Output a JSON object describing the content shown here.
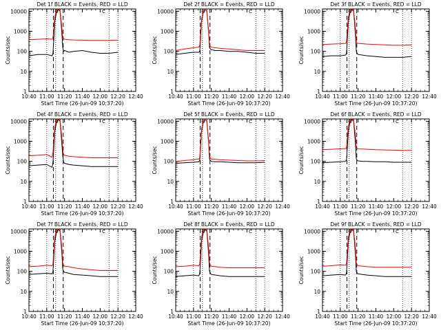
{
  "layout": {
    "rows": 3,
    "cols": 3
  },
  "common": {
    "xlabel": "Start Time (26-Jun-09 10:37:20)",
    "ylabel": "Counts/sec",
    "xticks": [
      "10:40",
      "11:00",
      "11:20",
      "11:40",
      "12:00",
      "12:20",
      "12:40"
    ],
    "yticks": [
      "1",
      "10",
      "100",
      "1000",
      "10000"
    ],
    "xrange_min": [
      0,
      120
    ],
    "ylim": [
      1,
      13000
    ],
    "yscale": "log",
    "dotted_lines_min": [
      20,
      30,
      90,
      100
    ],
    "dashed_lines_min": [
      27.5,
      38.5
    ],
    "colors": {
      "events": "#000000",
      "lld": "#ff0000",
      "axis": "#000000"
    },
    "markers": [
      "O",
      "C"
    ]
  },
  "chart_data": [
    {
      "type": "line",
      "title": "Det 1f BLACK = Events, RED = LLD",
      "series": [
        {
          "legend": "BLACK = Events",
          "color": "#000000",
          "x": [
            0,
            10,
            20,
            26,
            27,
            29,
            31,
            33,
            35,
            37,
            38,
            39,
            40,
            45,
            50,
            60,
            70,
            80,
            90,
            100
          ],
          "y": [
            60,
            70,
            70,
            60,
            80,
            3000,
            9000,
            12000,
            10000,
            800,
            150,
            100,
            110,
            90,
            100,
            110,
            90,
            80,
            80,
            90
          ]
        },
        {
          "legend": "RED = LLD",
          "color": "#ff0000",
          "x": [
            0,
            10,
            20,
            26,
            27,
            29,
            31,
            33,
            35,
            37,
            38,
            39,
            40,
            45,
            50,
            60,
            70,
            80,
            90,
            100
          ],
          "y": [
            380,
            400,
            420,
            400,
            500,
            5000,
            11000,
            13000,
            11000,
            1500,
            500,
            420,
            400,
            380,
            370,
            360,
            350,
            350,
            350,
            360
          ]
        }
      ]
    },
    {
      "type": "line",
      "title": "Det 2f BLACK = Events, RED = LLD",
      "series": [
        {
          "legend": "BLACK = Events",
          "color": "#000000",
          "x": [
            0,
            10,
            20,
            26,
            27,
            29,
            31,
            33,
            35,
            37,
            38,
            39,
            40,
            45,
            50,
            60,
            70,
            80,
            90,
            100
          ],
          "y": [
            70,
            80,
            90,
            90,
            100,
            3000,
            9000,
            12000,
            10000,
            800,
            150,
            130,
            120,
            110,
            110,
            100,
            100,
            90,
            80,
            80
          ]
        },
        {
          "legend": "RED = LLD",
          "color": "#ff0000",
          "x": [
            0,
            10,
            20,
            26,
            27,
            29,
            31,
            33,
            35,
            37,
            38,
            39,
            40,
            45,
            50,
            60,
            70,
            80,
            90,
            100
          ],
          "y": [
            110,
            130,
            150,
            160,
            200,
            4000,
            10000,
            12000,
            10000,
            1000,
            200,
            170,
            160,
            150,
            140,
            130,
            120,
            110,
            110,
            110
          ]
        }
      ]
    },
    {
      "type": "line",
      "title": "Det 3f BLACK = Events, RED = LLD",
      "series": [
        {
          "legend": "BLACK = Events",
          "color": "#000000",
          "x": [
            0,
            10,
            20,
            26,
            27,
            29,
            31,
            33,
            35,
            37,
            38,
            39,
            40,
            45,
            50,
            60,
            70,
            80,
            90,
            100
          ],
          "y": [
            55,
            60,
            60,
            65,
            80,
            3000,
            9000,
            12000,
            10000,
            700,
            100,
            80,
            70,
            65,
            60,
            55,
            50,
            50,
            50,
            55
          ]
        },
        {
          "legend": "RED = LLD",
          "color": "#ff0000",
          "x": [
            0,
            10,
            20,
            26,
            27,
            29,
            31,
            33,
            35,
            37,
            38,
            39,
            40,
            45,
            50,
            60,
            70,
            80,
            90,
            100
          ],
          "y": [
            220,
            230,
            240,
            250,
            300,
            5000,
            11000,
            13000,
            11000,
            1500,
            300,
            260,
            250,
            240,
            230,
            220,
            210,
            200,
            200,
            210
          ]
        }
      ]
    },
    {
      "type": "line",
      "title": "Det 4f BLACK = Events, RED = LLD",
      "series": [
        {
          "legend": "BLACK = Events",
          "color": "#000000",
          "x": [
            0,
            10,
            20,
            26,
            27,
            29,
            31,
            33,
            35,
            37,
            38,
            39,
            40,
            45,
            50,
            60,
            70,
            80,
            90,
            100
          ],
          "y": [
            60,
            65,
            70,
            50,
            90,
            3000,
            9000,
            12000,
            10000,
            700,
            180,
            90,
            80,
            70,
            65,
            60,
            55,
            55,
            55,
            55
          ]
        },
        {
          "legend": "RED = LLD",
          "color": "#ff0000",
          "x": [
            0,
            10,
            20,
            26,
            27,
            29,
            31,
            33,
            35,
            37,
            38,
            39,
            40,
            45,
            50,
            60,
            70,
            80,
            90,
            100
          ],
          "y": [
            190,
            200,
            220,
            160,
            280,
            5000,
            11000,
            13000,
            11000,
            1500,
            350,
            220,
            200,
            180,
            170,
            160,
            150,
            150,
            150,
            150
          ]
        }
      ]
    },
    {
      "type": "line",
      "title": "Det 5f BLACK = Events, RED = LLD",
      "series": [
        {
          "legend": "BLACK = Events",
          "color": "#000000",
          "x": [
            0,
            10,
            20,
            26,
            27,
            29,
            31,
            33,
            35,
            37,
            38,
            39,
            40,
            45,
            50,
            60,
            70,
            80,
            90,
            100
          ],
          "y": [
            80,
            85,
            90,
            95,
            110,
            3000,
            9000,
            12000,
            10000,
            800,
            130,
            110,
            100,
            95,
            95,
            90,
            85,
            85,
            85,
            90
          ]
        },
        {
          "legend": "RED = LLD",
          "color": "#ff0000",
          "x": [
            0,
            10,
            20,
            26,
            27,
            29,
            31,
            33,
            35,
            37,
            38,
            39,
            40,
            45,
            50,
            60,
            70,
            80,
            90,
            100
          ],
          "y": [
            100,
            110,
            120,
            130,
            150,
            4000,
            10000,
            12000,
            10000,
            1000,
            170,
            140,
            130,
            125,
            120,
            115,
            110,
            105,
            105,
            110
          ]
        }
      ]
    },
    {
      "type": "line",
      "title": "Det 6f BLACK = Events, RED = LLD",
      "series": [
        {
          "legend": "BLACK = Events",
          "color": "#000000",
          "x": [
            0,
            10,
            20,
            26,
            27,
            29,
            31,
            33,
            35,
            37,
            38,
            39,
            40,
            45,
            50,
            60,
            70,
            80,
            90,
            100
          ],
          "y": [
            85,
            90,
            95,
            100,
            120,
            3000,
            9000,
            12000,
            10000,
            800,
            130,
            110,
            105,
            100,
            100,
            95,
            95,
            90,
            90,
            90
          ]
        },
        {
          "legend": "RED = LLD",
          "color": "#ff0000",
          "x": [
            0,
            10,
            20,
            26,
            27,
            29,
            31,
            33,
            35,
            37,
            38,
            39,
            40,
            45,
            50,
            60,
            70,
            80,
            90,
            100
          ],
          "y": [
            380,
            400,
            420,
            430,
            500,
            6000,
            11000,
            13000,
            11000,
            2000,
            500,
            440,
            420,
            410,
            400,
            380,
            370,
            360,
            350,
            350
          ]
        }
      ]
    },
    {
      "type": "line",
      "title": "Det 7f BLACK = Events, RED = LLD",
      "series": [
        {
          "legend": "BLACK = Events",
          "color": "#000000",
          "x": [
            0,
            10,
            20,
            26,
            27,
            29,
            31,
            33,
            35,
            37,
            38,
            39,
            40,
            45,
            50,
            60,
            70,
            80,
            90,
            100
          ],
          "y": [
            70,
            75,
            80,
            75,
            100,
            3000,
            9000,
            12000,
            10000,
            800,
            130,
            100,
            90,
            80,
            70,
            65,
            60,
            55,
            55,
            55
          ]
        },
        {
          "legend": "RED = LLD",
          "color": "#ff0000",
          "x": [
            0,
            10,
            20,
            26,
            27,
            29,
            31,
            33,
            35,
            37,
            38,
            39,
            40,
            45,
            50,
            60,
            70,
            80,
            90,
            100
          ],
          "y": [
            170,
            180,
            200,
            190,
            240,
            5000,
            11000,
            13000,
            11000,
            1500,
            250,
            200,
            180,
            170,
            150,
            130,
            120,
            110,
            110,
            110
          ]
        }
      ]
    },
    {
      "type": "line",
      "title": "Det 8f BLACK = Events, RED = LLD",
      "series": [
        {
          "legend": "BLACK = Events",
          "color": "#000000",
          "x": [
            0,
            10,
            20,
            26,
            27,
            29,
            31,
            33,
            35,
            37,
            38,
            39,
            40,
            45,
            50,
            60,
            70,
            80,
            90,
            100
          ],
          "y": [
            55,
            60,
            65,
            60,
            80,
            3000,
            9000,
            12000,
            10000,
            700,
            100,
            80,
            70,
            65,
            60,
            55,
            55,
            55,
            55,
            55
          ]
        },
        {
          "legend": "RED = LLD",
          "color": "#ff0000",
          "x": [
            0,
            10,
            20,
            26,
            27,
            29,
            31,
            33,
            35,
            37,
            38,
            39,
            40,
            45,
            50,
            60,
            70,
            80,
            90,
            100
          ],
          "y": [
            170,
            180,
            200,
            190,
            230,
            5000,
            11000,
            13000,
            11000,
            1500,
            250,
            200,
            180,
            170,
            160,
            150,
            150,
            150,
            150,
            150
          ]
        }
      ]
    },
    {
      "type": "line",
      "title": "Det 9f BLACK = Events, RED = LLD",
      "series": [
        {
          "legend": "BLACK = Events",
          "color": "#000000",
          "x": [
            0,
            10,
            20,
            26,
            27,
            29,
            31,
            33,
            35,
            37,
            38,
            39,
            40,
            45,
            50,
            60,
            70,
            80,
            90,
            100
          ],
          "y": [
            60,
            65,
            70,
            65,
            85,
            3000,
            9000,
            12000,
            10000,
            700,
            100,
            80,
            75,
            70,
            65,
            60,
            55,
            55,
            55,
            55
          ]
        },
        {
          "legend": "RED = LLD",
          "color": "#ff0000",
          "x": [
            0,
            10,
            20,
            26,
            27,
            29,
            31,
            33,
            35,
            37,
            38,
            39,
            40,
            45,
            50,
            60,
            70,
            80,
            90,
            100
          ],
          "y": [
            180,
            190,
            210,
            200,
            250,
            5000,
            11000,
            13000,
            11000,
            1500,
            260,
            210,
            190,
            180,
            170,
            160,
            160,
            160,
            160,
            160
          ]
        }
      ]
    }
  ]
}
